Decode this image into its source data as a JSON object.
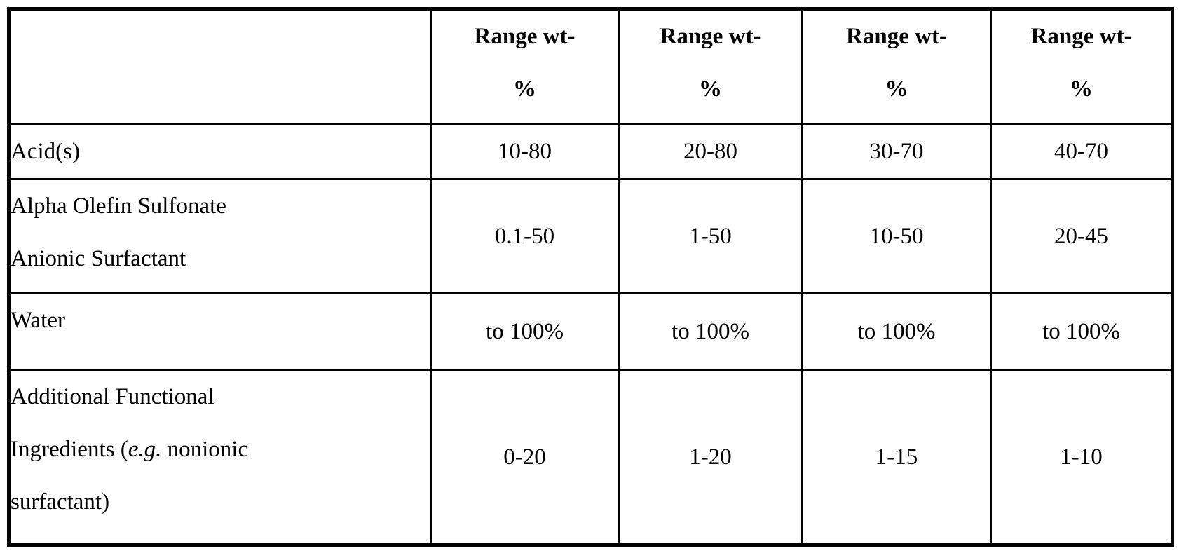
{
  "table": {
    "header": {
      "blank_label": "",
      "range_columns": [
        {
          "lines": [
            "Range wt-",
            "%"
          ]
        },
        {
          "lines": [
            "Range wt-",
            "%"
          ]
        },
        {
          "lines": [
            "Range wt-",
            "%"
          ]
        },
        {
          "lines": [
            "Range wt-",
            "%"
          ]
        }
      ]
    },
    "rows": [
      {
        "label_lines": [
          [
            {
              "t": "Acid(s)"
            }
          ]
        ],
        "values": [
          "10-80",
          "20-80",
          "30-70",
          "40-70"
        ]
      },
      {
        "label_lines": [
          [
            {
              "t": "Alpha Olefin Sulfonate"
            }
          ],
          [
            {
              "t": "Anionic Surfactant"
            }
          ]
        ],
        "values": [
          "0.1-50",
          "1-50",
          "10-50",
          "20-45"
        ]
      },
      {
        "label_lines": [
          [
            {
              "t": "Water"
            }
          ]
        ],
        "values": [
          "to 100%",
          "to 100%",
          "to 100%",
          "to 100%"
        ]
      },
      {
        "label_lines": [
          [
            {
              "t": "Additional Functional"
            }
          ],
          [
            {
              "t": "Ingredients ("
            },
            {
              "t": "e.g.",
              "italic": true
            },
            {
              "t": " nonionic"
            }
          ],
          [
            {
              "t": "surfactant)"
            }
          ]
        ],
        "values": [
          "0-20",
          "1-20",
          "1-15",
          "1-10"
        ]
      }
    ],
    "colors": {
      "border": "#000000",
      "text": "#000000",
      "background": "#ffffff"
    }
  }
}
